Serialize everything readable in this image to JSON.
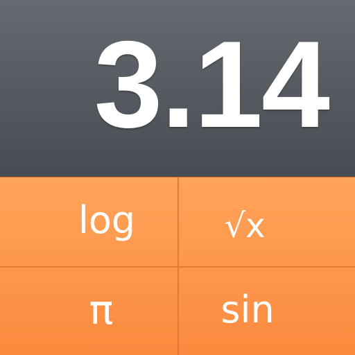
{
  "display": {
    "value": "3.14"
  },
  "keys": [
    {
      "label": "log"
    },
    {
      "label": "√x"
    },
    {
      "label": "π"
    },
    {
      "label": "sin"
    }
  ],
  "colors": {
    "display_bg_top": "#646a70",
    "display_bg_bottom": "#474c52",
    "keypad_bg_top": "#ffa45a",
    "keypad_bg_bottom": "#fb8a3e",
    "divider": "#e07a34",
    "text": "#ffffff"
  }
}
